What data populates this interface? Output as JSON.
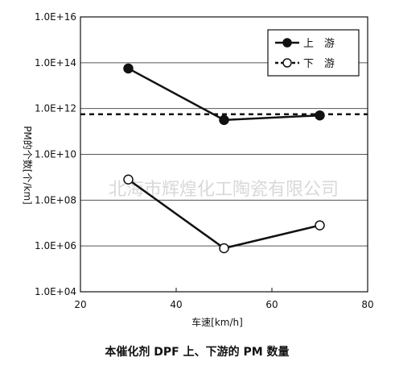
{
  "chart_data": {
    "type": "line",
    "xlabel": "车速[km/h]",
    "ylabel": "PM的个数[个/km]",
    "xlim": [
      20,
      80
    ],
    "ylim": [
      4,
      16
    ],
    "y_scale": "log",
    "x_ticks": [
      20,
      40,
      60,
      80
    ],
    "y_tick_labels": [
      "1.0E+04",
      "1.0E+06",
      "1.0E+08",
      "1.0E+10",
      "1.0E+12",
      "1.0E+14",
      "1.0E+16"
    ],
    "grid": "horizontal",
    "legend_position": "top-right",
    "series": [
      {
        "name": "上　游",
        "marker": "filled-circle",
        "x": [
          30,
          50,
          70
        ],
        "log10_y": [
          13.75,
          11.5,
          11.7
        ]
      },
      {
        "name": "下　游",
        "marker": "open-circle",
        "x": [
          30,
          50,
          70
        ],
        "log10_y": [
          8.9,
          5.9,
          6.9
        ]
      }
    ],
    "reference_line": {
      "log10_y": 11.75,
      "style": "dashed"
    }
  },
  "watermark": "北海市辉煌化工陶瓷有限公司",
  "caption": "本催化剂 DPF 上、下游的 PM 数量"
}
